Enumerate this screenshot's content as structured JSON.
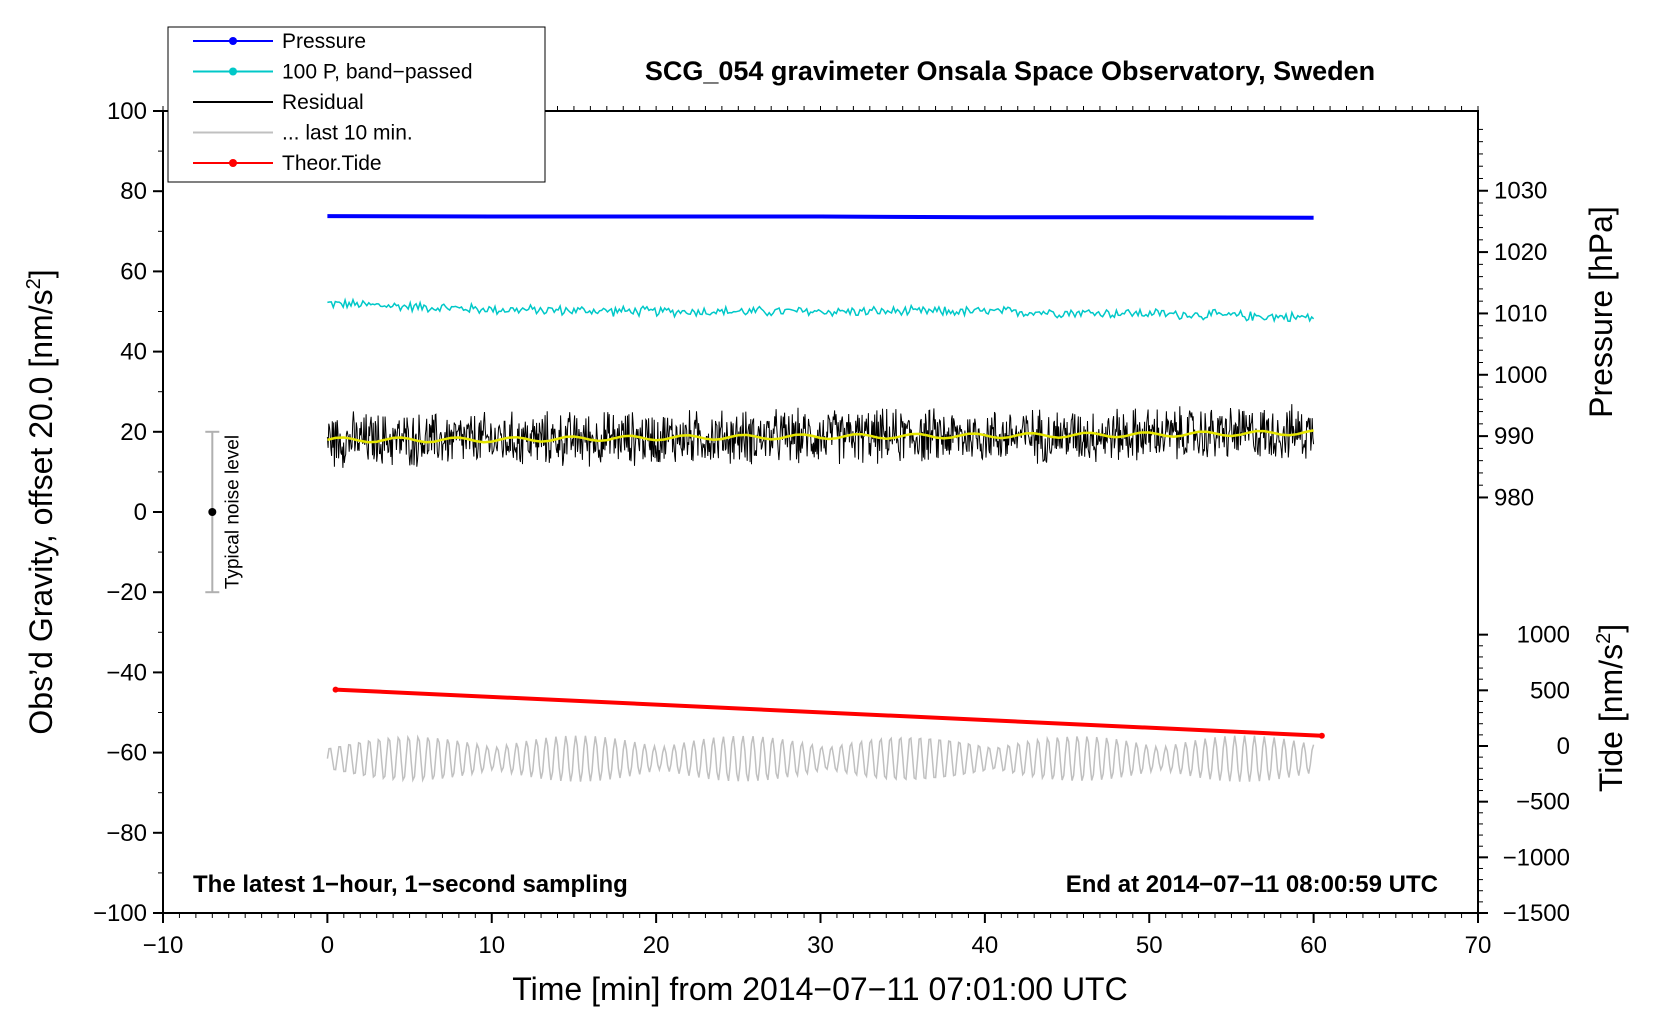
{
  "chart_data": {
    "type": "line",
    "title": "SCG_054 gravimeter Onsala Space Observatory, Sweden",
    "xlabel": "Time [min] from 2014−07−11 07:01:00 UTC",
    "ylabel_main": "Obs’d Gravity, offset 20.0 [nm/s",
    "ylabel_main_sup": "2",
    "ylabel_main_end": "]",
    "ylabel_pressure": "Pressure [hPa]",
    "ylabel_tide": "Tide [nm/s",
    "ylabel_tide_sup": "2",
    "ylabel_tide_end": "]",
    "xlim": [
      -10,
      70
    ],
    "ylim": [
      -100,
      100
    ],
    "pressure_axis_range": [
      976,
      1043
    ],
    "tide_axis_range": [
      -1500,
      1500
    ],
    "x_ticks": [
      "−10",
      "0",
      "10",
      "20",
      "30",
      "40",
      "50",
      "60",
      "70"
    ],
    "y_ticks": [
      "100",
      "80",
      "60",
      "40",
      "20",
      "0",
      "−20",
      "−40",
      "−60",
      "−80",
      "−100"
    ],
    "pressure_ticks": [
      "1030",
      "1020",
      "1010",
      "1000",
      "990",
      "980"
    ],
    "tide_ticks": [
      "1000",
      "500",
      "0",
      "−500",
      "−1000",
      "−1500"
    ],
    "annotation_left": "The latest 1−hour, 1−second sampling",
    "annotation_right": "End at 2014−07−11 08:00:59 UTC",
    "noise_bar": {
      "label": "Typical noise level",
      "x": -7,
      "center": 0,
      "low": -20,
      "high": 20
    },
    "legend_position": "top-left",
    "legend": [
      {
        "label": "Pressure",
        "color": "#0000ff",
        "marker": true
      },
      {
        "label": "100 P, band−passed",
        "color": "#00c8c8",
        "marker": true
      },
      {
        "label": "Residual",
        "color": "#000000",
        "marker": false
      },
      {
        "label": "... last 10 min.",
        "color": "#c0c0c0",
        "marker": false
      },
      {
        "label": "Theor.Tide",
        "color": "#ff0000",
        "marker": true
      }
    ],
    "series": [
      {
        "name": "Pressure",
        "axis": "gravity",
        "color": "#0000ff",
        "x": [
          0,
          10,
          20,
          30,
          40,
          50,
          60
        ],
        "y": [
          73.8,
          73.7,
          73.7,
          73.7,
          73.5,
          73.5,
          73.4
        ]
      },
      {
        "name": "100 P, band−passed",
        "axis": "gravity",
        "color": "#00c8c8",
        "x": [
          0,
          10,
          20,
          30,
          40,
          50,
          60
        ],
        "y": [
          52,
          50.5,
          50,
          50,
          50,
          49.5,
          48.5
        ],
        "noise_amplitude": 1.5
      },
      {
        "name": "Residual",
        "axis": "gravity",
        "color": "#000000",
        "x": [
          0,
          10,
          20,
          30,
          40,
          50,
          60
        ],
        "y": [
          18,
          18,
          18.5,
          18.8,
          19,
          19.3,
          19.8
        ],
        "noise_amplitude": 6
      },
      {
        "name": "... last 10 min.",
        "axis": "gravity",
        "color": "#c0c0c0",
        "x": [
          0,
          60
        ],
        "y": [
          -61.5,
          -61.5
        ],
        "noise_amplitude": 5
      },
      {
        "name": "Theor.Tide",
        "axis": "gravity",
        "color": "#ff0000",
        "x": [
          0.5,
          60.5
        ],
        "y": [
          -44.3,
          -55.8
        ]
      }
    ],
    "residual_smoothed_color": "#e6e600"
  }
}
